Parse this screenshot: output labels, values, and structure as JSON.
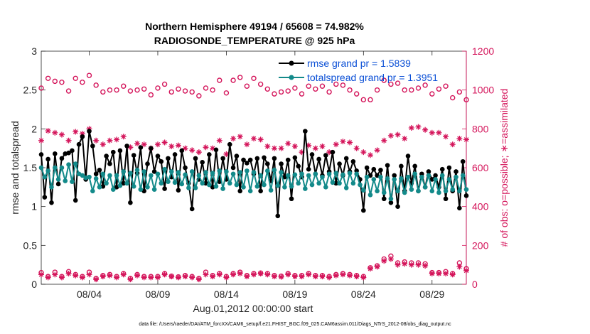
{
  "figure": {
    "title_line1": "Northern Hemisphere 49194 / 65608 = 74.982%",
    "title_line2": "RADIOSONDE_TEMPERATURE @ 925 hPa",
    "footnote": "data file: /Users/raeder/DAI/ATM_forcXX/CAM6_setup/f.e21.FHIST_BGC.f09_025.CAM6assim.011/Diags_NTrS_2012-08/obs_diag_output.nc"
  },
  "chart_data": {
    "type": "line",
    "xlabel": "Aug.01,2012 00:00:00 start",
    "ylabel_left": "rmse and totalspread",
    "ylabel_right": "# of obs: o=possible; ∗=assimilated",
    "xlim": [
      0.5,
      31.5
    ],
    "ylim_left": [
      0,
      3
    ],
    "ylim_right": [
      0,
      1200
    ],
    "x_ticks": [
      {
        "value": 4,
        "label": "08/04"
      },
      {
        "value": 9,
        "label": "08/09"
      },
      {
        "value": 14,
        "label": "08/14"
      },
      {
        "value": 19,
        "label": "08/19"
      },
      {
        "value": 24,
        "label": "08/24"
      },
      {
        "value": 29,
        "label": "08/29"
      }
    ],
    "y_ticks_left": [
      "0",
      "0.5",
      "1",
      "1.5",
      "2",
      "2.5",
      "3"
    ],
    "y_ticks_right": [
      "0",
      "200",
      "400",
      "600",
      "800",
      "1000",
      "1200"
    ],
    "legend": {
      "position": "top-right",
      "entries": [
        {
          "label": "rmse grand pr = 1.5839",
          "color": "#000000"
        },
        {
          "label": "totalspread grand pr = 1.3951",
          "color": "#138a8a"
        }
      ]
    },
    "colors": {
      "rmse": "#000000",
      "spread": "#138a8a",
      "obs": "#d4145a"
    },
    "x": [
      0.5,
      0.75,
      1.0,
      1.25,
      1.5,
      1.75,
      2.0,
      2.25,
      2.5,
      2.75,
      3.0,
      3.25,
      3.5,
      3.75,
      4.0,
      4.25,
      4.5,
      4.75,
      5.0,
      5.25,
      5.5,
      5.75,
      6.0,
      6.25,
      6.5,
      6.75,
      7.0,
      7.25,
      7.5,
      7.75,
      8.0,
      8.25,
      8.5,
      8.75,
      9.0,
      9.25,
      9.5,
      9.75,
      10.0,
      10.25,
      10.5,
      10.75,
      11.0,
      11.25,
      11.5,
      11.75,
      12.0,
      12.25,
      12.5,
      12.75,
      13.0,
      13.25,
      13.5,
      13.75,
      14.0,
      14.25,
      14.5,
      14.75,
      15.0,
      15.25,
      15.5,
      15.75,
      16.0,
      16.25,
      16.5,
      16.75,
      17.0,
      17.25,
      17.5,
      17.75,
      18.0,
      18.25,
      18.5,
      18.75,
      19.0,
      19.25,
      19.5,
      19.75,
      20.0,
      20.25,
      20.5,
      20.75,
      21.0,
      21.25,
      21.5,
      21.75,
      22.0,
      22.25,
      22.5,
      22.75,
      23.0,
      23.25,
      23.5,
      23.75,
      24.0,
      24.25,
      24.5,
      24.75,
      25.0,
      25.25,
      25.5,
      25.75,
      26.0,
      26.25,
      26.5,
      26.75,
      27.0,
      27.25,
      27.5,
      27.75,
      28.0,
      28.25,
      28.5,
      28.75,
      29.0,
      29.25,
      29.5,
      29.75,
      30.0,
      30.25,
      30.5,
      30.75,
      31.0,
      31.25,
      31.5
    ],
    "series": [
      {
        "name": "rmse grand pr = 1.5839",
        "kind": "line",
        "axis": "left",
        "values": [
          1.67,
          1.12,
          1.61,
          1.05,
          1.68,
          1.29,
          1.62,
          1.68,
          1.69,
          1.72,
          1.08,
          1.8,
          1.9,
          1.35,
          1.97,
          1.78,
          1.42,
          1.47,
          1.26,
          1.65,
          1.55,
          1.7,
          1.25,
          1.72,
          1.3,
          1.78,
          1.05,
          1.66,
          1.43,
          1.76,
          1.2,
          1.55,
          1.75,
          1.45,
          1.65,
          1.58,
          1.23,
          1.62,
          1.38,
          1.67,
          1.21,
          1.72,
          1.5,
          1.3,
          0.97,
          1.62,
          1.35,
          1.57,
          1.3,
          1.67,
          1.25,
          1.73,
          1.32,
          1.62,
          1.35,
          1.8,
          1.5,
          1.65,
          1.2,
          1.6,
          1.56,
          1.6,
          1.42,
          1.62,
          1.2,
          1.63,
          1.55,
          1.33,
          1.62,
          0.88,
          1.55,
          1.38,
          1.6,
          1.1,
          1.63,
          1.52,
          1.38,
          1.97,
          1.48,
          1.67,
          1.42,
          1.61,
          1.4,
          1.66,
          1.45,
          1.7,
          1.3,
          1.55,
          1.4,
          1.62,
          1.45,
          1.58,
          1.46,
          1.35,
          0.95,
          1.5,
          1.4,
          1.48,
          1.4,
          1.47,
          1.1,
          1.53,
          1.05,
          1.4,
          1.0,
          1.52,
          1.2,
          1.65,
          1.3,
          1.52,
          1.2,
          1.42,
          1.25,
          1.45,
          1.35,
          1.4,
          1.25,
          1.48,
          1.1,
          1.5,
          1.2,
          1.45,
          0.98,
          1.58,
          1.14
        ]
      },
      {
        "name": "totalspread grand pr = 1.3951",
        "kind": "line",
        "axis": "left",
        "values": [
          1.5,
          1.38,
          1.46,
          1.25,
          1.5,
          1.35,
          1.5,
          1.33,
          1.54,
          1.32,
          1.55,
          1.42,
          1.4,
          1.37,
          1.38,
          1.2,
          1.36,
          1.25,
          1.42,
          1.3,
          1.4,
          1.22,
          1.4,
          1.27,
          1.45,
          1.3,
          1.43,
          1.26,
          1.47,
          1.22,
          1.45,
          1.25,
          1.4,
          1.22,
          1.42,
          1.3,
          1.48,
          1.32,
          1.45,
          1.31,
          1.44,
          1.29,
          1.41,
          1.24,
          1.45,
          1.24,
          1.4,
          1.3,
          1.44,
          1.28,
          1.43,
          1.26,
          1.46,
          1.23,
          1.45,
          1.3,
          1.42,
          1.28,
          1.44,
          1.25,
          1.46,
          1.2,
          1.44,
          1.26,
          1.4,
          1.28,
          1.46,
          1.21,
          1.47,
          1.27,
          1.44,
          1.25,
          1.4,
          1.26,
          1.41,
          1.3,
          1.42,
          1.23,
          1.4,
          1.28,
          1.42,
          1.3,
          1.38,
          1.25,
          1.42,
          1.31,
          1.43,
          1.3,
          1.41,
          1.24,
          1.43,
          1.3,
          1.42,
          1.28,
          1.21,
          1.38,
          1.15,
          1.35,
          1.2,
          1.38,
          1.18,
          1.36,
          1.1,
          1.35,
          1.2,
          1.36,
          1.18,
          1.38,
          1.22,
          1.42,
          1.2,
          1.38,
          1.25,
          1.4,
          1.2,
          1.35,
          1.18,
          1.4,
          1.2,
          1.35,
          1.22,
          1.38,
          1.2,
          1.4,
          1.22
        ]
      },
      {
        "name": "",
        "kind": "circle",
        "axis": "right",
        "x": [
          0.5,
          1.0,
          1.5,
          2.0,
          2.5,
          3.0,
          3.5,
          4.0,
          4.5,
          5.0,
          5.5,
          6.0,
          6.5,
          7.0,
          7.5,
          8.0,
          8.5,
          9.0,
          9.5,
          10.0,
          10.5,
          11.0,
          11.5,
          12.0,
          12.5,
          13.0,
          13.5,
          14.0,
          14.5,
          15.0,
          15.5,
          16.0,
          16.5,
          17.0,
          17.5,
          18.0,
          18.5,
          19.0,
          19.5,
          20.0,
          20.5,
          21.0,
          21.5,
          22.0,
          22.5,
          23.0,
          23.5,
          24.0,
          24.5,
          25.0,
          25.5,
          26.0,
          26.5,
          27.0,
          27.5,
          28.0,
          28.5,
          29.0,
          29.5,
          30.0,
          30.5,
          31.0,
          31.5
        ],
        "values": [
          1010,
          1060,
          1045,
          1040,
          995,
          1060,
          1040,
          1075,
          1025,
          990,
          1000,
          1000,
          1020,
          995,
          1000,
          1005,
          975,
          1010,
          1030,
          990,
          1005,
          995,
          990,
          970,
          1010,
          1000,
          1050,
          985,
          1050,
          1065,
          1020,
          1060,
          1030,
          1005,
          980,
          990,
          995,
          1010,
          980,
          1020,
          1005,
          1020,
          990,
          1030,
          1025,
          1000,
          980,
          950,
          950,
          1000,
          1050,
          1030,
          1035,
          1000,
          1000,
          1010,
          1025,
          980,
          1005,
          1020,
          960,
          990,
          950
        ]
      },
      {
        "name": "",
        "kind": "asterisk",
        "axis": "right",
        "x": [
          0.5,
          1.0,
          1.5,
          2.0,
          2.5,
          3.0,
          3.5,
          4.0,
          4.5,
          5.0,
          5.5,
          6.0,
          6.5,
          7.0,
          7.5,
          8.0,
          8.5,
          9.0,
          9.5,
          10.0,
          10.5,
          11.0,
          11.5,
          12.0,
          12.5,
          13.0,
          13.5,
          14.0,
          14.5,
          15.0,
          15.5,
          16.0,
          16.5,
          17.0,
          17.5,
          18.0,
          18.5,
          19.0,
          19.5,
          20.0,
          20.5,
          21.0,
          21.5,
          22.0,
          22.5,
          23.0,
          23.5,
          24.0,
          24.5,
          25.0,
          25.5,
          26.0,
          26.5,
          27.0,
          27.5,
          28.0,
          28.5,
          29.0,
          29.5,
          30.0,
          30.5,
          31.0,
          31.5
        ],
        "values": [
          740,
          790,
          780,
          770,
          740,
          785,
          775,
          800,
          740,
          720,
          740,
          745,
          760,
          705,
          725,
          720,
          700,
          720,
          730,
          710,
          715,
          700,
          690,
          680,
          705,
          700,
          740,
          670,
          750,
          760,
          720,
          750,
          745,
          710,
          700,
          700,
          725,
          710,
          680,
          715,
          700,
          710,
          680,
          720,
          735,
          730,
          700,
          680,
          665,
          690,
          740,
          765,
          770,
          750,
          805,
          810,
          795,
          780,
          780,
          760,
          720,
          750,
          745
        ]
      },
      {
        "name": "",
        "kind": "circle",
        "axis": "right",
        "x": [
          0.5,
          1.0,
          1.5,
          2.0,
          2.5,
          3.0,
          3.5,
          4.0,
          4.5,
          5.0,
          5.5,
          6.0,
          6.5,
          7.0,
          7.5,
          8.0,
          8.5,
          9.0,
          9.5,
          10.0,
          10.5,
          11.0,
          11.5,
          12.0,
          12.5,
          13.0,
          13.5,
          14.0,
          14.5,
          15.0,
          15.5,
          16.0,
          16.5,
          17.0,
          17.5,
          18.0,
          18.5,
          19.0,
          19.5,
          20.0,
          20.5,
          21.0,
          21.5,
          22.0,
          22.5,
          23.0,
          23.5,
          24.0,
          24.5,
          25.0,
          25.5,
          26.0,
          26.5,
          27.0,
          27.5,
          28.0,
          28.5,
          29.0,
          29.5,
          30.0,
          30.5,
          31.0,
          31.5
        ],
        "values": [
          60,
          40,
          62,
          40,
          65,
          50,
          40,
          62,
          30,
          45,
          50,
          40,
          55,
          30,
          50,
          40,
          40,
          40,
          55,
          42,
          38,
          45,
          40,
          30,
          62,
          45,
          55,
          40,
          55,
          62,
          45,
          55,
          58,
          55,
          45,
          42,
          55,
          45,
          45,
          55,
          45,
          45,
          40,
          50,
          55,
          50,
          45,
          40,
          85,
          95,
          130,
          145,
          110,
          115,
          110,
          110,
          105,
          60,
          60,
          65,
          55,
          110,
          80
        ]
      },
      {
        "name": "",
        "kind": "asterisk",
        "axis": "right",
        "x": [
          0.5,
          1.0,
          1.5,
          2.0,
          2.5,
          3.0,
          3.5,
          4.0,
          4.5,
          5.0,
          5.5,
          6.0,
          6.5,
          7.0,
          7.5,
          8.0,
          8.5,
          9.0,
          9.5,
          10.0,
          10.5,
          11.0,
          11.5,
          12.0,
          12.5,
          13.0,
          13.5,
          14.0,
          14.5,
          15.0,
          15.5,
          16.0,
          16.5,
          17.0,
          17.5,
          18.0,
          18.5,
          19.0,
          19.5,
          20.0,
          20.5,
          21.0,
          21.5,
          22.0,
          22.5,
          23.0,
          23.5,
          24.0,
          24.5,
          25.0,
          25.5,
          26.0,
          26.5,
          27.0,
          27.5,
          28.0,
          28.5,
          29.0,
          29.5,
          30.0,
          30.5,
          31.0,
          31.5
        ],
        "values": [
          50,
          35,
          50,
          35,
          55,
          45,
          35,
          50,
          25,
          40,
          45,
          35,
          50,
          25,
          45,
          35,
          35,
          35,
          50,
          40,
          35,
          40,
          35,
          25,
          50,
          40,
          50,
          35,
          50,
          55,
          40,
          50,
          55,
          50,
          40,
          38,
          50,
          40,
          40,
          50,
          40,
          40,
          35,
          45,
          50,
          45,
          40,
          35,
          80,
          90,
          120,
          130,
          100,
          105,
          100,
          100,
          95,
          55,
          55,
          55,
          50,
          90,
          70
        ]
      }
    ]
  }
}
